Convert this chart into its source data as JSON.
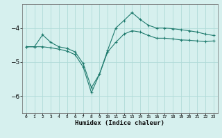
{
  "xlabel": "Humidex (Indice chaleur)",
  "background_color": "#d6f0ee",
  "grid_color": "#b0dbd8",
  "line_color": "#1e7a6d",
  "xlim": [
    -0.5,
    23.5
  ],
  "ylim": [
    -6.5,
    -3.3
  ],
  "yticks": [
    -6,
    -5,
    -4
  ],
  "xticks": [
    0,
    1,
    2,
    3,
    4,
    5,
    6,
    7,
    8,
    9,
    10,
    11,
    12,
    13,
    14,
    15,
    16,
    17,
    18,
    19,
    20,
    21,
    22,
    23
  ],
  "line1_x": [
    0,
    1,
    2,
    3,
    4,
    5,
    6,
    7,
    8,
    9,
    10,
    11,
    12,
    13,
    14,
    15,
    16,
    17,
    18,
    19,
    20,
    21,
    22,
    23
  ],
  "line1_y": [
    -4.55,
    -4.55,
    -4.2,
    -4.42,
    -4.55,
    -4.6,
    -4.7,
    -5.05,
    -5.75,
    -5.35,
    -4.65,
    -4.0,
    -3.78,
    -3.55,
    -3.75,
    -3.92,
    -4.0,
    -4.0,
    -4.02,
    -4.05,
    -4.08,
    -4.12,
    -4.18,
    -4.22
  ],
  "line2_x": [
    0,
    1,
    2,
    3,
    4,
    5,
    6,
    7,
    8,
    9,
    10,
    11,
    12,
    13,
    14,
    15,
    16,
    17,
    18,
    19,
    20,
    21,
    22,
    23
  ],
  "line2_y": [
    -4.55,
    -4.55,
    -4.55,
    -4.58,
    -4.62,
    -4.68,
    -4.78,
    -5.15,
    -5.9,
    -5.35,
    -4.7,
    -4.42,
    -4.18,
    -4.08,
    -4.12,
    -4.22,
    -4.3,
    -4.3,
    -4.32,
    -4.35,
    -4.36,
    -4.38,
    -4.4,
    -4.38
  ]
}
